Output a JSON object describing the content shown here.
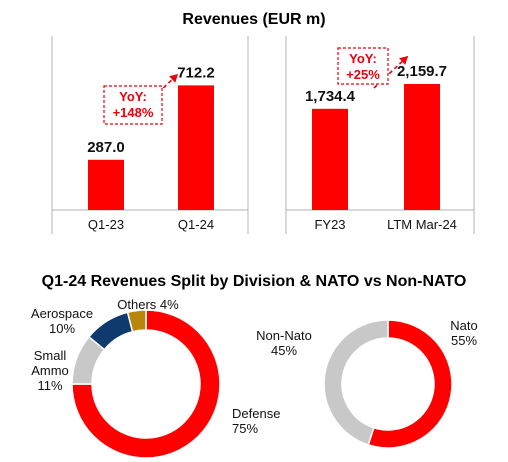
{
  "colors": {
    "red": "#ff0000",
    "dark_red": "#e8000b",
    "grey": "#c8c8c8",
    "navy": "#0f3a6e",
    "gold": "#b8860b",
    "axis": "#b3b3b3"
  },
  "chart_data": [
    {
      "type": "bar",
      "title": "Revenues (EUR m)",
      "categories": [
        "Q1-23",
        "Q1-24"
      ],
      "values": [
        287.0,
        712.2
      ],
      "value_labels": [
        "287.0",
        "712.2"
      ],
      "annotation": {
        "line1": "YoY:",
        "line2": "+148%"
      },
      "ylim": [
        0,
        800
      ]
    },
    {
      "type": "bar",
      "title": "Revenues (EUR m)",
      "categories": [
        "FY23",
        "LTM Mar-24"
      ],
      "values": [
        1734.4,
        2159.7
      ],
      "value_labels": [
        "1,734.4",
        "2,159.7"
      ],
      "annotation": {
        "line1": "YoY:",
        "line2": "+25%"
      },
      "ylim": [
        0,
        2400
      ]
    },
    {
      "type": "pie",
      "title": "Q1-24 Revenues Split by Division & NATO vs Non-NATO",
      "categories": [
        "Defense",
        "Small Ammo",
        "Aerospace",
        "Others"
      ],
      "values": [
        75,
        11,
        10,
        4
      ],
      "labels": [
        [
          "Defense",
          "75%"
        ],
        [
          "Small",
          "Ammo",
          "11%"
        ],
        [
          "Aerospace",
          "10%"
        ],
        [
          "Others 4%"
        ]
      ]
    },
    {
      "type": "pie",
      "title": "Q1-24 Revenues Split by Division & NATO vs Non-NATO",
      "categories": [
        "Nato",
        "Non-Nato"
      ],
      "values": [
        55,
        45
      ],
      "labels": [
        [
          "Nato",
          "55%"
        ],
        [
          "Non-Nato",
          "45%"
        ]
      ]
    }
  ],
  "header": {
    "top_title": "Revenues (EUR m)",
    "bottom_title": "Q1-24 Revenues Split by Division & NATO vs Non-NATO"
  }
}
